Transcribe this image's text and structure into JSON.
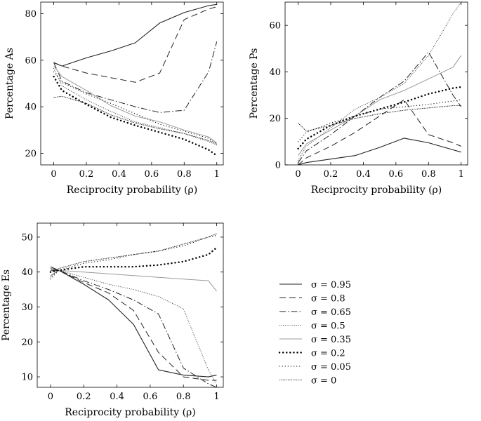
{
  "chart_data": [
    {
      "type": "line",
      "xlabel": "Reciprocity probability (ρ)",
      "ylabel": "Percentage As",
      "xlim": [
        -0.08,
        1.04
      ],
      "ylim": [
        15,
        85
      ],
      "xticks": [
        0,
        0.2,
        0.4,
        0.6,
        0.8,
        1
      ],
      "xtick_labels": [
        "0",
        "0.2",
        "0.4",
        "0.6",
        "0.8",
        "1"
      ],
      "yticks": [
        20,
        40,
        60,
        80
      ],
      "ytick_labels": [
        "20",
        "40",
        "60",
        "80"
      ],
      "x": [
        0,
        0.05,
        0.2,
        0.35,
        0.5,
        0.65,
        0.8,
        0.95,
        1
      ],
      "series": [
        {
          "name": "σ = 0.95",
          "values": [
            59,
            57.5,
            61,
            64,
            67.5,
            76,
            80.5,
            83.5,
            84
          ]
        },
        {
          "name": "σ = 0.8",
          "values": [
            59,
            57.5,
            54.5,
            52.5,
            50.5,
            54.5,
            77.5,
            82,
            83
          ]
        },
        {
          "name": "σ = 0.65",
          "values": [
            59,
            51,
            46,
            43,
            40,
            37.5,
            38.5,
            55,
            68
          ]
        },
        {
          "name": "σ = 0.5",
          "values": [
            56.5,
            49,
            43,
            38,
            33.5,
            31,
            28.5,
            25,
            23.5
          ]
        },
        {
          "name": "σ = 0.35",
          "values": [
            57.5,
            53,
            47,
            40.5,
            36,
            33.5,
            30,
            27,
            24.5
          ]
        },
        {
          "name": "σ = 0.2",
          "values": [
            53,
            47,
            41,
            35.5,
            32,
            29,
            26,
            21.5,
            19
          ]
        },
        {
          "name": "σ = 0.05",
          "values": [
            55,
            50.5,
            45.5,
            41.5,
            37,
            32.5,
            29.5,
            26.5,
            24
          ]
        },
        {
          "name": "σ = 0",
          "values": [
            44,
            44.5,
            41.5,
            36.5,
            33,
            30.5,
            28.5,
            25.5,
            24
          ]
        }
      ]
    },
    {
      "type": "line",
      "xlabel": "Reciprocity probability (ρ)",
      "ylabel": "Percentage Ps",
      "xlim": [
        -0.08,
        1.04
      ],
      "ylim": [
        0,
        70
      ],
      "xticks": [
        0,
        0.2,
        0.4,
        0.6,
        0.8,
        1
      ],
      "xtick_labels": [
        "0",
        "0.2",
        "0.4",
        "0.6",
        "0.8",
        "1"
      ],
      "yticks": [
        0,
        20,
        40,
        60
      ],
      "ytick_labels": [
        "0",
        "20",
        "40",
        "60"
      ],
      "x": [
        0,
        0.05,
        0.2,
        0.35,
        0.5,
        0.65,
        0.8,
        0.95,
        1
      ],
      "series": [
        {
          "name": "σ = 0.95",
          "values": [
            0,
            1,
            2.5,
            4,
            7.5,
            11.5,
            9.5,
            6.5,
            5.5
          ]
        },
        {
          "name": "σ = 0.8",
          "values": [
            0,
            3,
            8,
            14,
            21,
            28,
            13,
            9.5,
            8
          ]
        },
        {
          "name": "σ = 0.65",
          "values": [
            1,
            6,
            13,
            21,
            29,
            36,
            48.5,
            30,
            25
          ]
        },
        {
          "name": "σ = 0.5",
          "values": [
            2,
            8,
            16,
            24,
            29,
            35,
            47,
            65,
            70
          ]
        },
        {
          "name": "σ = 0.35",
          "values": [
            4,
            9,
            15,
            21,
            28,
            32,
            37,
            42,
            47
          ]
        },
        {
          "name": "σ = 0.2",
          "values": [
            7,
            11,
            17,
            21,
            24,
            27,
            30.5,
            33,
            33.5
          ]
        },
        {
          "name": "σ = 0.05",
          "values": [
            10,
            14,
            18,
            21,
            24,
            25,
            26,
            27.5,
            28
          ]
        },
        {
          "name": "σ = 0",
          "values": [
            18,
            14.5,
            17,
            20,
            22,
            23.5,
            24.5,
            25.5,
            25.5
          ]
        }
      ]
    },
    {
      "type": "line",
      "xlabel": "Reciprocity probability (ρ)",
      "ylabel": "Percentage Es",
      "xlim": [
        -0.08,
        1.04
      ],
      "ylim": [
        7,
        54
      ],
      "xticks": [
        0,
        0.2,
        0.4,
        0.6,
        0.8,
        1
      ],
      "xtick_labels": [
        "0",
        "0.2",
        "0.4",
        "0.6",
        "0.8",
        "1"
      ],
      "yticks": [
        10,
        20,
        30,
        40,
        50
      ],
      "ytick_labels": [
        "10",
        "20",
        "30",
        "40",
        "50"
      ],
      "x": [
        0,
        0.05,
        0.2,
        0.35,
        0.5,
        0.65,
        0.8,
        0.95,
        1
      ],
      "series": [
        {
          "name": "σ = 0.95",
          "values": [
            41.5,
            40.5,
            36.5,
            32,
            25,
            12,
            10.5,
            10,
            10.5
          ]
        },
        {
          "name": "σ = 0.8",
          "values": [
            41,
            40.5,
            37,
            34,
            29,
            17,
            10,
            9,
            9
          ]
        },
        {
          "name": "σ = 0.65",
          "values": [
            40.5,
            40.5,
            37.5,
            35,
            32,
            28,
            12.5,
            8,
            7
          ]
        },
        {
          "name": "σ = 0.5",
          "values": [
            40,
            40.5,
            38.5,
            36.5,
            35,
            33,
            29.5,
            12,
            8
          ]
        },
        {
          "name": "σ = 0.35",
          "values": [
            39,
            40.5,
            40,
            39.5,
            39,
            38.5,
            38,
            37.5,
            34.5
          ]
        },
        {
          "name": "σ = 0.2",
          "values": [
            40,
            40.5,
            41.5,
            41.5,
            41.5,
            42,
            43,
            45,
            47
          ]
        },
        {
          "name": "σ = 0.05",
          "values": [
            38,
            40.5,
            42.5,
            43.5,
            45,
            46,
            47.5,
            50,
            50.5
          ]
        },
        {
          "name": "σ = 0",
          "values": [
            38.5,
            41,
            43,
            44,
            45,
            46,
            48,
            50,
            51
          ]
        }
      ]
    }
  ],
  "legend": {
    "placement": "bottom-right",
    "items": [
      {
        "label": "σ = 0.95",
        "dash": "solid-dark"
      },
      {
        "label": "σ = 0.8",
        "dash": "long-dash"
      },
      {
        "label": "σ = 0.65",
        "dash": "dash-dot"
      },
      {
        "label": "σ = 0.5",
        "dash": "fine-dot"
      },
      {
        "label": "σ = 0.35",
        "dash": "solid-light"
      },
      {
        "label": "σ = 0.2",
        "dash": "heavy-dot"
      },
      {
        "label": "σ = 0.05",
        "dash": "sparse-dot"
      },
      {
        "label": "σ = 0",
        "dash": "dense-dot"
      }
    ]
  },
  "colors": {
    "line_dark": "#222222",
    "line_light": "#9a9a9a",
    "frame": "#000000"
  }
}
